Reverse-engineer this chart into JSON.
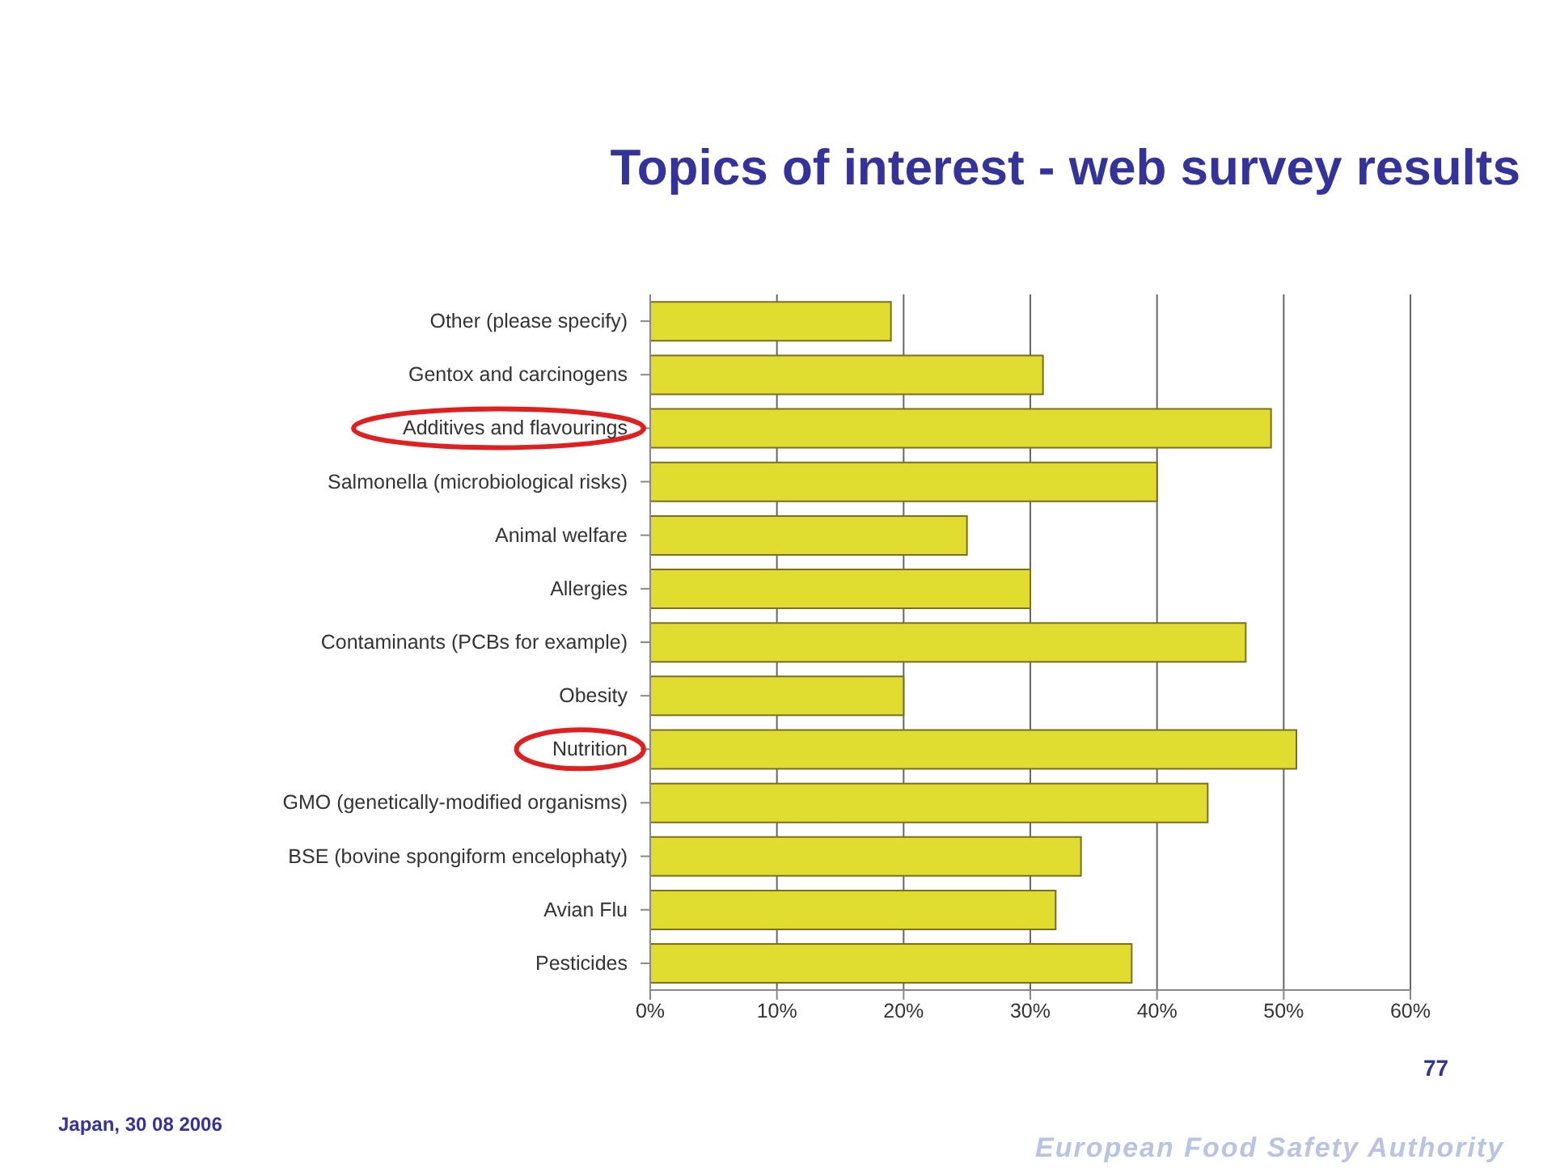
{
  "chart_data": {
    "type": "bar",
    "orientation": "horizontal",
    "title": "Topics of interest - web survey results",
    "categories": [
      "Other (please specify)",
      "Gentox and carcinogens",
      "Additives and flavourings",
      "Salmonella (microbiological risks)",
      "Animal welfare",
      "Allergies",
      "Contaminants (PCBs for example)",
      "Obesity",
      "Nutrition",
      "GMO (genetically-modified organisms)",
      "BSE (bovine spongiform encelophaty)",
      "Avian Flu",
      "Pesticides"
    ],
    "values": [
      19,
      31,
      49,
      40,
      25,
      30,
      47,
      20,
      51,
      44,
      34,
      32,
      38
    ],
    "color": "#e0dc30",
    "xlim": [
      0,
      60
    ],
    "xticks": [
      {
        "value": 0,
        "label": "0%"
      },
      {
        "value": 10,
        "label": "10%"
      },
      {
        "value": 20,
        "label": "20%"
      },
      {
        "value": 30,
        "label": "30%"
      },
      {
        "value": 40,
        "label": "40%"
      },
      {
        "value": 50,
        "label": "50%"
      },
      {
        "value": 60,
        "label": "60%"
      }
    ],
    "grid": "x",
    "annotations": [
      "77",
      "Japan, 30 08 2006",
      "European Food Safety Authority"
    ]
  }
}
